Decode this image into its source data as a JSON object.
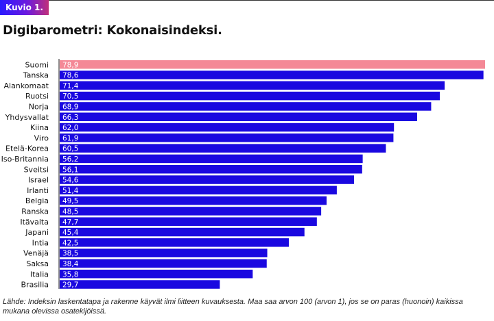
{
  "header": {
    "badge": "Kuvio 1.",
    "title": "Digibarometri: Kokonaisindeksi."
  },
  "footer": {
    "source": "Lähde: Indeksin laskentatapa ja rakenne käyvät ilmi liitteen kuvauksesta. Maa saa arvon 100 (arvon 1), jos se on paras (huonoin) kaikissa mukana olevissa osatekijöissä."
  },
  "colors": {
    "bar": "#1a08e0",
    "highlight": "#f48896",
    "label_text": "#ffffff"
  },
  "chart_data": {
    "type": "bar",
    "orientation": "horizontal",
    "categories": [
      "Suomi",
      "Tanska",
      "Alankomaat",
      "Ruotsi",
      "Norja",
      "Yhdysvallat",
      "Kiina",
      "Viro",
      "Etelä-Korea",
      "Iso-Britannia",
      "Sveitsi",
      "Israel",
      "Irlanti",
      "Belgia",
      "Ranska",
      "Itävalta",
      "Japani",
      "Intia",
      "Venäjä",
      "Saksa",
      "Italia",
      "Brasilia"
    ],
    "values": [
      78.9,
      78.6,
      71.4,
      70.5,
      68.9,
      66.3,
      62.0,
      61.9,
      60.5,
      56.2,
      56.1,
      54.6,
      51.4,
      49.5,
      48.5,
      47.7,
      45.4,
      42.5,
      38.5,
      38.4,
      35.8,
      29.7
    ],
    "value_labels": [
      "78,9",
      "78,6",
      "71,4",
      "70,5",
      "68,9",
      "66,3",
      "62,0",
      "61,9",
      "60,5",
      "56,2",
      "56,1",
      "54,6",
      "51,4",
      "49,5",
      "48,5",
      "47,7",
      "45,4",
      "42,5",
      "38,5",
      "38,4",
      "35,8",
      "29,7"
    ],
    "highlight_category": "Suomi",
    "xlim": [
      0,
      78.9
    ],
    "grid": false,
    "legend": "none"
  }
}
